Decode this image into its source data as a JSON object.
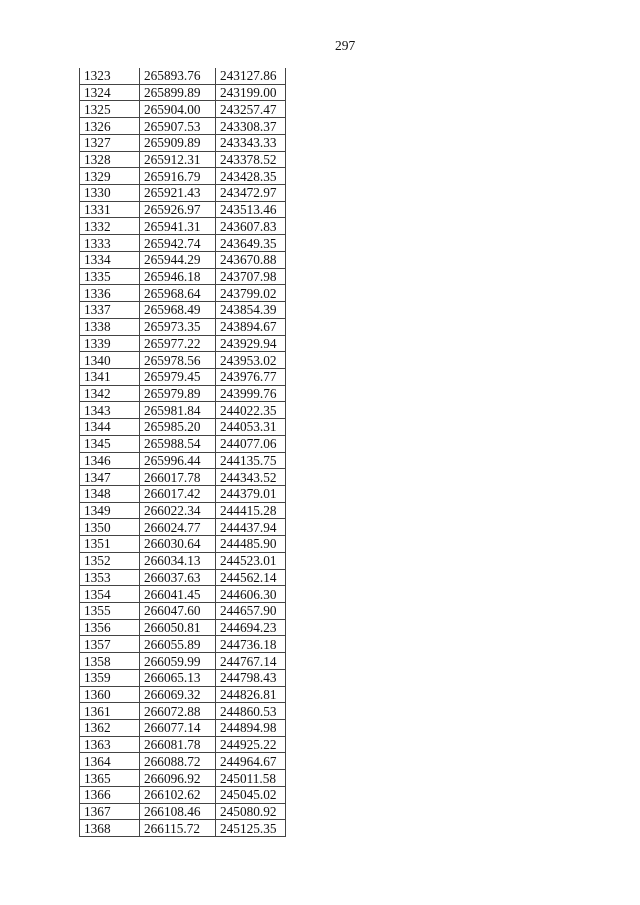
{
  "page_number": "297",
  "table": {
    "rows": [
      [
        "1323",
        "265893.76",
        "243127.86"
      ],
      [
        "1324",
        "265899.89",
        "243199.00"
      ],
      [
        "1325",
        "265904.00",
        "243257.47"
      ],
      [
        "1326",
        "265907.53",
        "243308.37"
      ],
      [
        "1327",
        "265909.89",
        "243343.33"
      ],
      [
        "1328",
        "265912.31",
        "243378.52"
      ],
      [
        "1329",
        "265916.79",
        "243428.35"
      ],
      [
        "1330",
        "265921.43",
        "243472.97"
      ],
      [
        "1331",
        "265926.97",
        "243513.46"
      ],
      [
        "1332",
        "265941.31",
        "243607.83"
      ],
      [
        "1333",
        "265942.74",
        "243649.35"
      ],
      [
        "1334",
        "265944.29",
        "243670.88"
      ],
      [
        "1335",
        "265946.18",
        "243707.98"
      ],
      [
        "1336",
        "265968.64",
        "243799.02"
      ],
      [
        "1337",
        "265968.49",
        "243854.39"
      ],
      [
        "1338",
        "265973.35",
        "243894.67"
      ],
      [
        "1339",
        "265977.22",
        "243929.94"
      ],
      [
        "1340",
        "265978.56",
        "243953.02"
      ],
      [
        "1341",
        "265979.45",
        "243976.77"
      ],
      [
        "1342",
        "265979.89",
        "243999.76"
      ],
      [
        "1343",
        "265981.84",
        "244022.35"
      ],
      [
        "1344",
        "265985.20",
        "244053.31"
      ],
      [
        "1345",
        "265988.54",
        "244077.06"
      ],
      [
        "1346",
        "265996.44",
        "244135.75"
      ],
      [
        "1347",
        "266017.78",
        "244343.52"
      ],
      [
        "1348",
        "266017.42",
        "244379.01"
      ],
      [
        "1349",
        "266022.34",
        "244415.28"
      ],
      [
        "1350",
        "266024.77",
        "244437.94"
      ],
      [
        "1351",
        "266030.64",
        "244485.90"
      ],
      [
        "1352",
        "266034.13",
        "244523.01"
      ],
      [
        "1353",
        "266037.63",
        "244562.14"
      ],
      [
        "1354",
        "266041.45",
        "244606.30"
      ],
      [
        "1355",
        "266047.60",
        "244657.90"
      ],
      [
        "1356",
        "266050.81",
        "244694.23"
      ],
      [
        "1357",
        "266055.89",
        "244736.18"
      ],
      [
        "1358",
        "266059.99",
        "244767.14"
      ],
      [
        "1359",
        "266065.13",
        "244798.43"
      ],
      [
        "1360",
        "266069.32",
        "244826.81"
      ],
      [
        "1361",
        "266072.88",
        "244860.53"
      ],
      [
        "1362",
        "266077.14",
        "244894.98"
      ],
      [
        "1363",
        "266081.78",
        "244925.22"
      ],
      [
        "1364",
        "266088.72",
        "244964.67"
      ],
      [
        "1365",
        "266096.92",
        "245011.58"
      ],
      [
        "1366",
        "266102.62",
        "245045.02"
      ],
      [
        "1367",
        "266108.46",
        "245080.92"
      ],
      [
        "1368",
        "266115.72",
        "245125.35"
      ]
    ]
  }
}
